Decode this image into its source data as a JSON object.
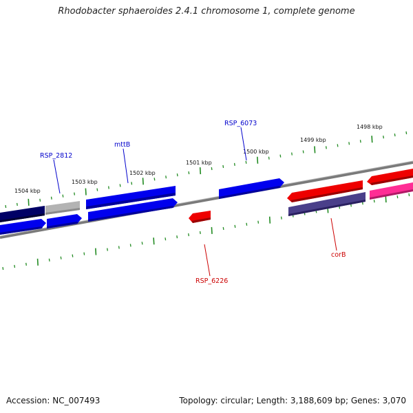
{
  "title": "Rhodobacter sphaeroides 2.4.1 chromosome 1, complete genome",
  "footer": {
    "accession": "Accession: NC_007493",
    "stats": "Topology: circular; Length: 3,188,609 bp; Genes: 3,070"
  },
  "scale_labels": [
    "1504 kbp",
    "1503 kbp",
    "1502 kbp",
    "1501 kbp",
    "1500 kbp",
    "1499 kbp",
    "1498 kbp"
  ],
  "gene_labels": [
    {
      "name": "RSP_2812",
      "color": "#0000cc"
    },
    {
      "name": "mttB",
      "color": "#0000cc"
    },
    {
      "name": "RSP_6073",
      "color": "#0000cc"
    },
    {
      "name": "RSP_6226",
      "color": "#cc0000"
    },
    {
      "name": "corB",
      "color": "#cc0000"
    }
  ],
  "colors": {
    "backbone": "#808080",
    "scale_ticks": "#228B22",
    "gene_blue": "#0000ee",
    "gene_navy": "#000066",
    "gene_gray": "#b0b0b0",
    "gene_red": "#ee0000",
    "gene_slate": "#4a3f8a",
    "gene_pink": "#ff2d95"
  }
}
